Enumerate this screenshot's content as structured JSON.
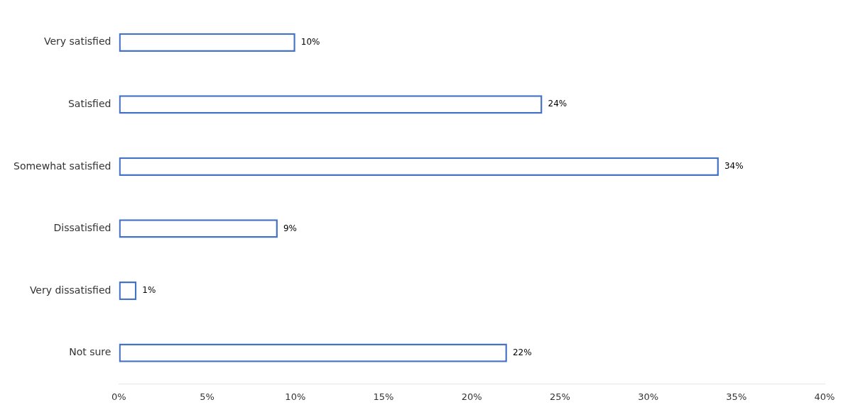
{
  "chart_data": {
    "type": "bar",
    "orientation": "horizontal",
    "categories": [
      "Very satisfied",
      "Satisfied",
      "Somewhat satisfied",
      "Dissatisfied",
      "Very dissatisfied",
      "Not sure"
    ],
    "values": [
      10,
      24,
      34,
      9,
      1,
      22
    ],
    "value_labels": [
      "10%",
      "24%",
      "34%",
      "9%",
      "1%",
      "22%"
    ],
    "data_labels": true,
    "color": "#4472C4",
    "xlim": [
      0,
      40
    ],
    "xticks": [
      {
        "value": 0,
        "label": "0%"
      },
      {
        "value": 5,
        "label": "5%"
      },
      {
        "value": 10,
        "label": "10%"
      },
      {
        "value": 15,
        "label": "15%"
      },
      {
        "value": 20,
        "label": "20%"
      },
      {
        "value": 25,
        "label": "25%"
      },
      {
        "value": 30,
        "label": "30%"
      },
      {
        "value": 35,
        "label": "35%"
      },
      {
        "value": 40,
        "label": "40%"
      }
    ],
    "grid": false
  }
}
